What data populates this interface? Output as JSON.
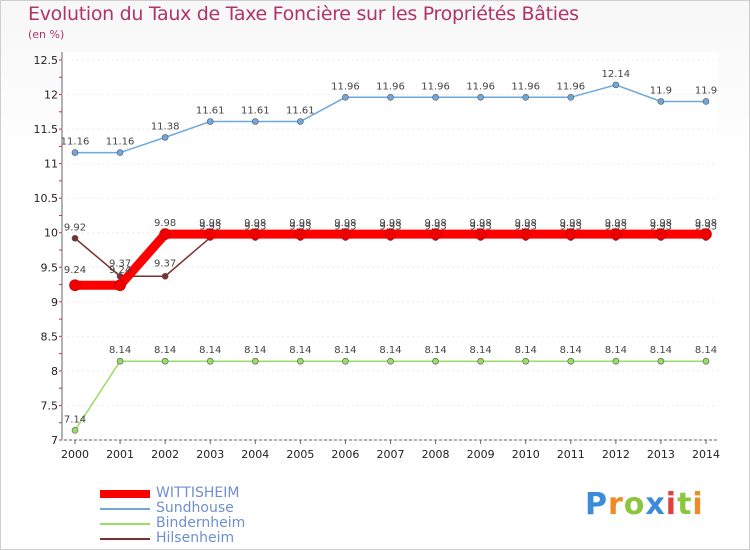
{
  "chart_data": {
    "type": "line",
    "title": "Evolution du Taux de Taxe Foncière sur les Propriétés Bâties",
    "ylabel": "(en %)",
    "ylim": [
      7,
      12.5
    ],
    "yticks": [
      "7",
      "7.5",
      "8",
      "8.5",
      "9",
      "9.5",
      "10",
      "10.5",
      "11",
      "11.5",
      "12",
      "12.5"
    ],
    "x": [
      "2000",
      "2001",
      "2002",
      "2003",
      "2004",
      "2005",
      "2006",
      "2007",
      "2008",
      "2009",
      "2010",
      "2011",
      "2012",
      "2013",
      "2014"
    ],
    "series": [
      {
        "name": "WITTISHEIM",
        "color": "#ff0000",
        "values": [
          9.24,
          9.24,
          9.98,
          9.98,
          9.98,
          9.98,
          9.98,
          9.98,
          9.98,
          9.98,
          9.98,
          9.98,
          9.98,
          9.98,
          9.98
        ],
        "labels": [
          "9.24",
          "9.24",
          "9.98",
          "9.98",
          "9.98",
          "9.98",
          "9.98",
          "9.98",
          "9.98",
          "9.98",
          "9.98",
          "9.98",
          "9.98",
          "9.98",
          "9.98"
        ]
      },
      {
        "name": "Sundhouse",
        "color": "#6fa8dc",
        "values": [
          11.16,
          11.16,
          11.38,
          11.61,
          11.61,
          11.61,
          11.96,
          11.96,
          11.96,
          11.96,
          11.96,
          11.96,
          12.14,
          11.9,
          11.9
        ],
        "labels": [
          "11.16",
          "11.16",
          "11.38",
          "11.61",
          "11.61",
          "11.61",
          "11.96",
          "11.96",
          "11.96",
          "11.96",
          "11.96",
          "11.96",
          "12.14",
          "11.9",
          "11.9"
        ]
      },
      {
        "name": "Bindernheim",
        "color": "#99dd66",
        "values": [
          7.14,
          8.14,
          8.14,
          8.14,
          8.14,
          8.14,
          8.14,
          8.14,
          8.14,
          8.14,
          8.14,
          8.14,
          8.14,
          8.14,
          8.14
        ],
        "labels": [
          "7.14",
          "8.14",
          "8.14",
          "8.14",
          "8.14",
          "8.14",
          "8.14",
          "8.14",
          "8.14",
          "8.14",
          "8.14",
          "8.14",
          "8.14",
          "8.14",
          "8.14"
        ]
      },
      {
        "name": "Hilsenheim",
        "color": "#7a3030",
        "values": [
          9.92,
          9.37,
          9.37,
          9.93,
          9.93,
          9.93,
          9.93,
          9.93,
          9.93,
          9.93,
          9.93,
          9.93,
          9.93,
          9.93,
          9.93
        ],
        "labels": [
          "9.92",
          "9.37",
          "9.37",
          "9.93",
          "9.93",
          "9.93",
          "9.93",
          "9.93",
          "9.93",
          "9.93",
          "9.93",
          "9.93",
          "9.93",
          "9.93",
          "9.93"
        ]
      }
    ],
    "legend_position": "bottom-left"
  },
  "logo": {
    "letters": [
      "P",
      "r",
      "o",
      "x",
      "i",
      "t",
      "i"
    ],
    "colors": [
      "#3b8bd8",
      "#f08a24",
      "#8cc63f",
      "#3b8bd8",
      "#e04040",
      "#8cc63f",
      "#f08a24"
    ]
  }
}
